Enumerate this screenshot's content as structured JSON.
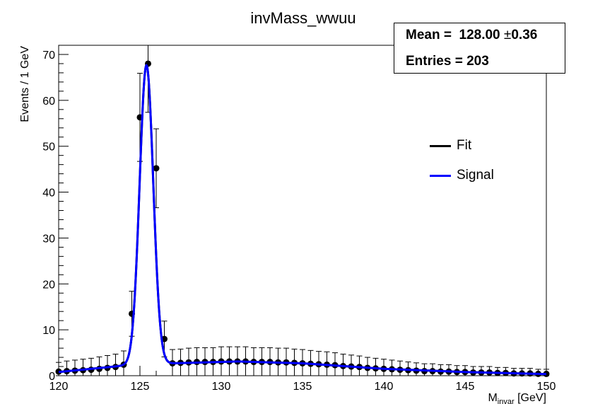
{
  "chart_data": {
    "type": "scatter",
    "title": "invMass_wwuu",
    "xlabel_main": "M",
    "xlabel_sub": "invar",
    "xlabel_unit": " [GeV]",
    "ylabel": "Events / 1 GeV",
    "xlim": [
      120,
      150
    ],
    "ylim": [
      0,
      72
    ],
    "x_ticks": [
      120,
      125,
      130,
      135,
      140,
      145,
      150
    ],
    "y_ticks": [
      0,
      10,
      20,
      30,
      40,
      50,
      60,
      70
    ],
    "grid": false,
    "legend_position": "right",
    "stats": {
      "mean_label": "Mean = ",
      "mean_value": "128.00",
      "pm": "±",
      "mean_error": "0.36",
      "entries_label": "Entries = ",
      "entries_value": "203"
    },
    "data_points": {
      "color": "#000000",
      "x": [
        120.0,
        120.5,
        121.0,
        121.5,
        122.0,
        122.5,
        123.0,
        123.5,
        124.0,
        124.5,
        125.0,
        125.5,
        126.0,
        126.5,
        127.0,
        127.5,
        128.0,
        128.5,
        129.0,
        129.5,
        130.0,
        130.5,
        131.0,
        131.5,
        132.0,
        132.5,
        133.0,
        133.5,
        134.0,
        134.5,
        135.0,
        135.5,
        136.0,
        136.5,
        137.0,
        137.5,
        138.0,
        138.5,
        139.0,
        139.5,
        140.0,
        140.5,
        141.0,
        141.5,
        142.0,
        142.5,
        143.0,
        143.5,
        144.0,
        144.5,
        145.0,
        145.5,
        146.0,
        146.5,
        147.0,
        147.5,
        148.0,
        148.5,
        149.0,
        149.5,
        150.0
      ],
      "y": [
        0.9,
        1.0,
        1.1,
        1.2,
        1.3,
        1.5,
        1.7,
        1.9,
        2.4,
        13.5,
        56.3,
        68.0,
        45.2,
        8.0,
        2.7,
        2.8,
        2.9,
        3.0,
        3.0,
        3.0,
        3.1,
        3.1,
        3.1,
        3.1,
        3.0,
        3.0,
        3.0,
        2.9,
        2.9,
        2.8,
        2.7,
        2.6,
        2.5,
        2.4,
        2.3,
        2.1,
        2.0,
        1.9,
        1.7,
        1.6,
        1.5,
        1.4,
        1.3,
        1.2,
        1.1,
        1.0,
        1.0,
        0.9,
        0.9,
        0.8,
        0.8,
        0.7,
        0.7,
        0.7,
        0.6,
        0.6,
        0.5,
        0.5,
        0.5,
        0.4,
        0.4
      ],
      "yerr": [
        2.0,
        2.2,
        2.3,
        2.4,
        2.5,
        2.6,
        2.7,
        2.8,
        3.0,
        4.9,
        9.6,
        10.6,
        8.6,
        3.9,
        3.0,
        3.0,
        3.1,
        3.1,
        3.1,
        3.1,
        3.2,
        3.2,
        3.2,
        3.2,
        3.1,
        3.1,
        3.1,
        3.1,
        3.1,
        3.0,
        3.0,
        2.9,
        2.8,
        2.8,
        2.7,
        2.6,
        2.5,
        2.4,
        2.3,
        2.2,
        2.1,
        2.0,
        1.9,
        1.8,
        1.7,
        1.6,
        1.6,
        1.5,
        1.5,
        1.4,
        1.4,
        1.3,
        1.3,
        1.3,
        1.2,
        1.2,
        1.1,
        1.1,
        1.1,
        1.0,
        1.0
      ]
    },
    "series": [
      {
        "name": "Fit",
        "color": "#000000"
      },
      {
        "name": "Signal",
        "color": "#0000ff"
      }
    ],
    "curve": {
      "peak_x": 125.4,
      "peak_height": 65.2,
      "peak_sigma": 0.42,
      "background_points": [
        [
          120,
          0.8
        ],
        [
          124,
          2.2
        ],
        [
          127,
          2.7
        ],
        [
          131,
          3.1
        ],
        [
          135,
          2.7
        ],
        [
          140,
          1.5
        ],
        [
          145,
          0.8
        ],
        [
          150,
          0.35
        ]
      ]
    }
  }
}
